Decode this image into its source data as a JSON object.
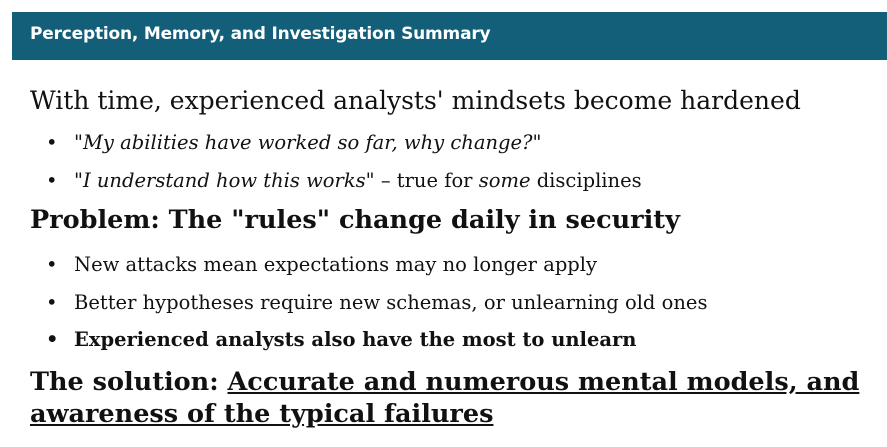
{
  "header": {
    "title": "Perception, Memory, and Investigation Summary"
  },
  "content": {
    "intro": "With time, experienced analysts' mindsets become hardened",
    "bullets_1": [
      {
        "italic": "\"My abilities have worked so far, why change?\""
      },
      {
        "italic": "\"I understand how this works\"",
        "mid": " – true for ",
        "italic2": "some",
        "tail": " disciplines"
      }
    ],
    "problem": "Problem: The \"rules\" change daily in security",
    "bullets_2": [
      {
        "text": "New attacks mean expectations may no longer apply"
      },
      {
        "text": "Better hypotheses require new schemas, or unlearning old ones"
      },
      {
        "text": "Experienced analysts also have the most to unlearn"
      }
    ],
    "solution": {
      "prefix": "The solution: ",
      "line1": "Accurate and numerous mental models, and",
      "line2": "awareness of the typical failures"
    }
  },
  "bullet_glyph": "•"
}
